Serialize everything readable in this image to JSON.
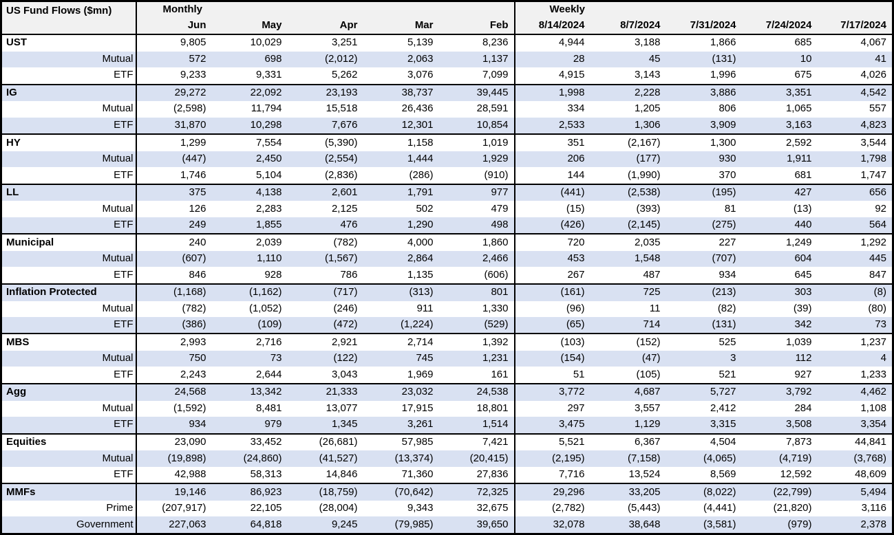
{
  "colors": {
    "stripe": "#d9e1f2",
    "header_bg": "#f1f1f1",
    "border": "#000000",
    "text": "#000000"
  },
  "chart_data": {
    "type": "table",
    "title": "US Fund Flows ($mn)",
    "units": "$mn",
    "column_groups": [
      {
        "label": "Monthly",
        "columns": [
          "Jun",
          "May",
          "Apr",
          "Mar",
          "Feb"
        ]
      },
      {
        "label": "Weekly",
        "columns": [
          "8/14/2024",
          "8/7/2024",
          "7/31/2024",
          "7/24/2024",
          "7/17/2024"
        ]
      }
    ],
    "negative_format": "parentheses",
    "row_groups": [
      {
        "name": "UST",
        "rows": [
          {
            "label": "UST",
            "is_total": true,
            "values": [
              9805,
              10029,
              3251,
              5139,
              8236,
              4944,
              3188,
              1866,
              685,
              4067
            ]
          },
          {
            "label": "Mutual",
            "is_total": false,
            "values": [
              572,
              698,
              -2012,
              2063,
              1137,
              28,
              45,
              -131,
              10,
              41
            ]
          },
          {
            "label": "ETF",
            "is_total": false,
            "values": [
              9233,
              9331,
              5262,
              3076,
              7099,
              4915,
              3143,
              1996,
              675,
              4026
            ]
          }
        ]
      },
      {
        "name": "IG",
        "rows": [
          {
            "label": "IG",
            "is_total": true,
            "values": [
              29272,
              22092,
              23193,
              38737,
              39445,
              1998,
              2228,
              3886,
              3351,
              4542
            ]
          },
          {
            "label": "Mutual",
            "is_total": false,
            "values": [
              -2598,
              11794,
              15518,
              26436,
              28591,
              334,
              1205,
              806,
              1065,
              557
            ]
          },
          {
            "label": "ETF",
            "is_total": false,
            "values": [
              31870,
              10298,
              7676,
              12301,
              10854,
              2533,
              1306,
              3909,
              3163,
              4823
            ]
          }
        ]
      },
      {
        "name": "HY",
        "rows": [
          {
            "label": "HY",
            "is_total": true,
            "values": [
              1299,
              7554,
              -5390,
              1158,
              1019,
              351,
              -2167,
              1300,
              2592,
              3544
            ]
          },
          {
            "label": "Mutual",
            "is_total": false,
            "values": [
              -447,
              2450,
              -2554,
              1444,
              1929,
              206,
              -177,
              930,
              1911,
              1798
            ]
          },
          {
            "label": "ETF",
            "is_total": false,
            "values": [
              1746,
              5104,
              -2836,
              -286,
              -910,
              144,
              -1990,
              370,
              681,
              1747
            ]
          }
        ]
      },
      {
        "name": "LL",
        "rows": [
          {
            "label": "LL",
            "is_total": true,
            "values": [
              375,
              4138,
              2601,
              1791,
              977,
              -441,
              -2538,
              -195,
              427,
              656
            ]
          },
          {
            "label": "Mutual",
            "is_total": false,
            "values": [
              126,
              2283,
              2125,
              502,
              479,
              -15,
              -393,
              81,
              -13,
              92
            ]
          },
          {
            "label": "ETF",
            "is_total": false,
            "values": [
              249,
              1855,
              476,
              1290,
              498,
              -426,
              -2145,
              -275,
              440,
              564
            ]
          }
        ]
      },
      {
        "name": "Municipal",
        "rows": [
          {
            "label": "Municipal",
            "is_total": true,
            "values": [
              240,
              2039,
              -782,
              4000,
              1860,
              720,
              2035,
              227,
              1249,
              1292
            ]
          },
          {
            "label": "Mutual",
            "is_total": false,
            "values": [
              -607,
              1110,
              -1567,
              2864,
              2466,
              453,
              1548,
              -707,
              604,
              445
            ]
          },
          {
            "label": "ETF",
            "is_total": false,
            "values": [
              846,
              928,
              786,
              1135,
              -606,
              267,
              487,
              934,
              645,
              847
            ]
          }
        ]
      },
      {
        "name": "Inflation Protected",
        "rows": [
          {
            "label": "Inflation Protected",
            "is_total": true,
            "values": [
              -1168,
              -1162,
              -717,
              -313,
              801,
              -161,
              725,
              -213,
              303,
              -8
            ]
          },
          {
            "label": "Mutual",
            "is_total": false,
            "values": [
              -782,
              -1052,
              -246,
              911,
              1330,
              -96,
              11,
              -82,
              -39,
              -80
            ]
          },
          {
            "label": "ETF",
            "is_total": false,
            "values": [
              -386,
              -109,
              -472,
              -1224,
              -529,
              -65,
              714,
              -131,
              342,
              73
            ]
          }
        ]
      },
      {
        "name": "MBS",
        "rows": [
          {
            "label": "MBS",
            "is_total": true,
            "values": [
              2993,
              2716,
              2921,
              2714,
              1392,
              -103,
              -152,
              525,
              1039,
              1237
            ]
          },
          {
            "label": "Mutual",
            "is_total": false,
            "values": [
              750,
              73,
              -122,
              745,
              1231,
              -154,
              -47,
              3,
              112,
              4
            ]
          },
          {
            "label": "ETF",
            "is_total": false,
            "values": [
              2243,
              2644,
              3043,
              1969,
              161,
              51,
              -105,
              521,
              927,
              1233
            ]
          }
        ]
      },
      {
        "name": "Agg",
        "rows": [
          {
            "label": "Agg",
            "is_total": true,
            "values": [
              24568,
              13342,
              21333,
              23032,
              24538,
              3772,
              4687,
              5727,
              3792,
              4462
            ]
          },
          {
            "label": "Mutual",
            "is_total": false,
            "values": [
              -1592,
              8481,
              13077,
              17915,
              18801,
              297,
              3557,
              2412,
              284,
              1108
            ]
          },
          {
            "label": "ETF",
            "is_total": false,
            "values": [
              934,
              979,
              1345,
              3261,
              1514,
              3475,
              1129,
              3315,
              3508,
              3354
            ]
          }
        ]
      },
      {
        "name": "Equities",
        "rows": [
          {
            "label": "Equities",
            "is_total": true,
            "values": [
              23090,
              33452,
              -26681,
              57985,
              7421,
              5521,
              6367,
              4504,
              7873,
              44841
            ]
          },
          {
            "label": "Mutual",
            "is_total": false,
            "values": [
              -19898,
              -24860,
              -41527,
              -13374,
              -20415,
              -2195,
              -7158,
              -4065,
              -4719,
              -3768
            ]
          },
          {
            "label": "ETF",
            "is_total": false,
            "values": [
              42988,
              58313,
              14846,
              71360,
              27836,
              7716,
              13524,
              8569,
              12592,
              48609
            ]
          }
        ]
      },
      {
        "name": "MMFs",
        "rows": [
          {
            "label": "MMFs",
            "is_total": true,
            "values": [
              19146,
              86923,
              -18759,
              -70642,
              72325,
              29296,
              33205,
              -8022,
              -22799,
              5494
            ]
          },
          {
            "label": "Prime",
            "is_total": false,
            "values": [
              -207917,
              22105,
              -28004,
              9343,
              32675,
              -2782,
              -5443,
              -4441,
              -21820,
              3116
            ]
          },
          {
            "label": "Government",
            "is_total": false,
            "values": [
              227063,
              64818,
              9245,
              -79985,
              39650,
              32078,
              38648,
              -3581,
              -979,
              2378
            ]
          }
        ]
      }
    ]
  }
}
